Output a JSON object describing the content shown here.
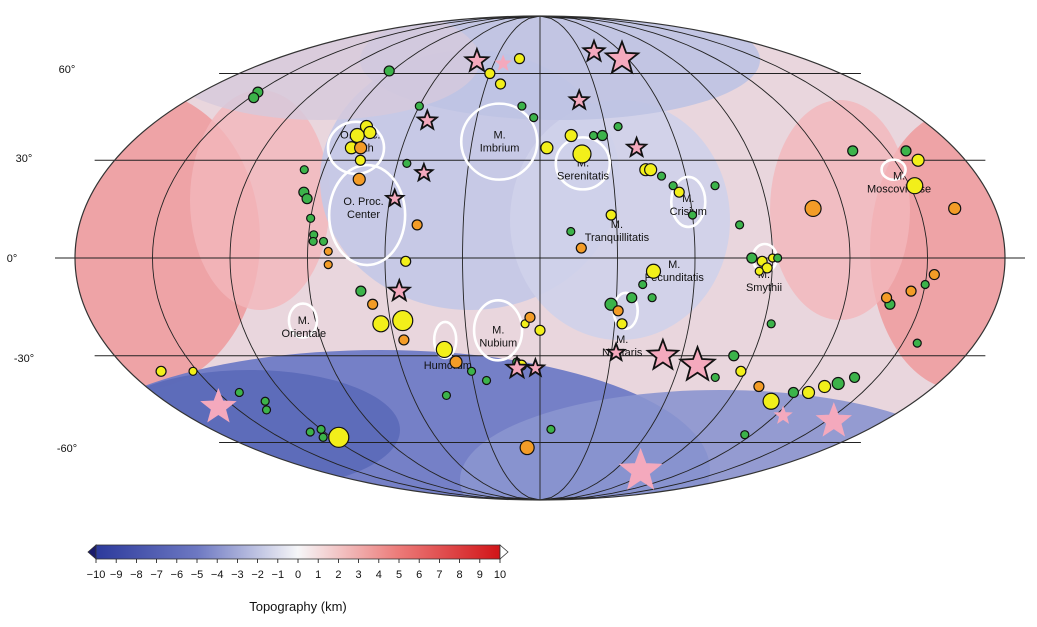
{
  "map": {
    "projection": "Mollweide",
    "latitude_labels": [
      "60°",
      "30°",
      "0°",
      "-30°",
      "-60°"
    ],
    "basins": [
      {
        "label": "O. Proc.\nNorth",
        "lon": -80,
        "lat": 37
      },
      {
        "label": "M.\nImbrium",
        "lon": -18,
        "lat": 37
      },
      {
        "label": "M.\nSerenitatis",
        "lon": 18,
        "lat": 28
      },
      {
        "label": "O. Proc.\nCenter",
        "lon": -70,
        "lat": 16
      },
      {
        "label": "M.\nCrisium",
        "lon": 59,
        "lat": 17
      },
      {
        "label": "M.\nTranquillitatis",
        "lon": 30,
        "lat": 9
      },
      {
        "label": "M.\nMoscoviense",
        "lon": 147,
        "lat": 24
      },
      {
        "label": "M.\nFecunditatis",
        "lon": 52,
        "lat": -3
      },
      {
        "label": "M.\nSmythii",
        "lon": 87,
        "lat": -6
      },
      {
        "label": "M.\nOrientale",
        "lon": -95,
        "lat": -20
      },
      {
        "label": "M.\nNubium",
        "lon": -17,
        "lat": -23
      },
      {
        "label": "M.\nHumorum",
        "lon": -39,
        "lat": -30
      },
      {
        "label": "M.\nNectaris",
        "lon": 34,
        "lat": -26
      }
    ],
    "marker_colors": {
      "green": "#3cb34a",
      "yellow": "#f2ef1a",
      "orange": "#f39c27",
      "star": "#f4a9bd",
      "basin_outline": "#ffffff",
      "low": "#3344a6",
      "mid": "#f2f2f7",
      "high": "#d91a1f"
    }
  },
  "colorbar": {
    "ticks": [
      "−10",
      "−9",
      "−8",
      "−7",
      "−6",
      "−5",
      "−4",
      "−3",
      "−2",
      "−1",
      "0",
      "1",
      "2",
      "3",
      "4",
      "5",
      "6",
      "7",
      "8",
      "9",
      "10"
    ],
    "min": -10,
    "max": 10,
    "title": "Topography (km)"
  }
}
